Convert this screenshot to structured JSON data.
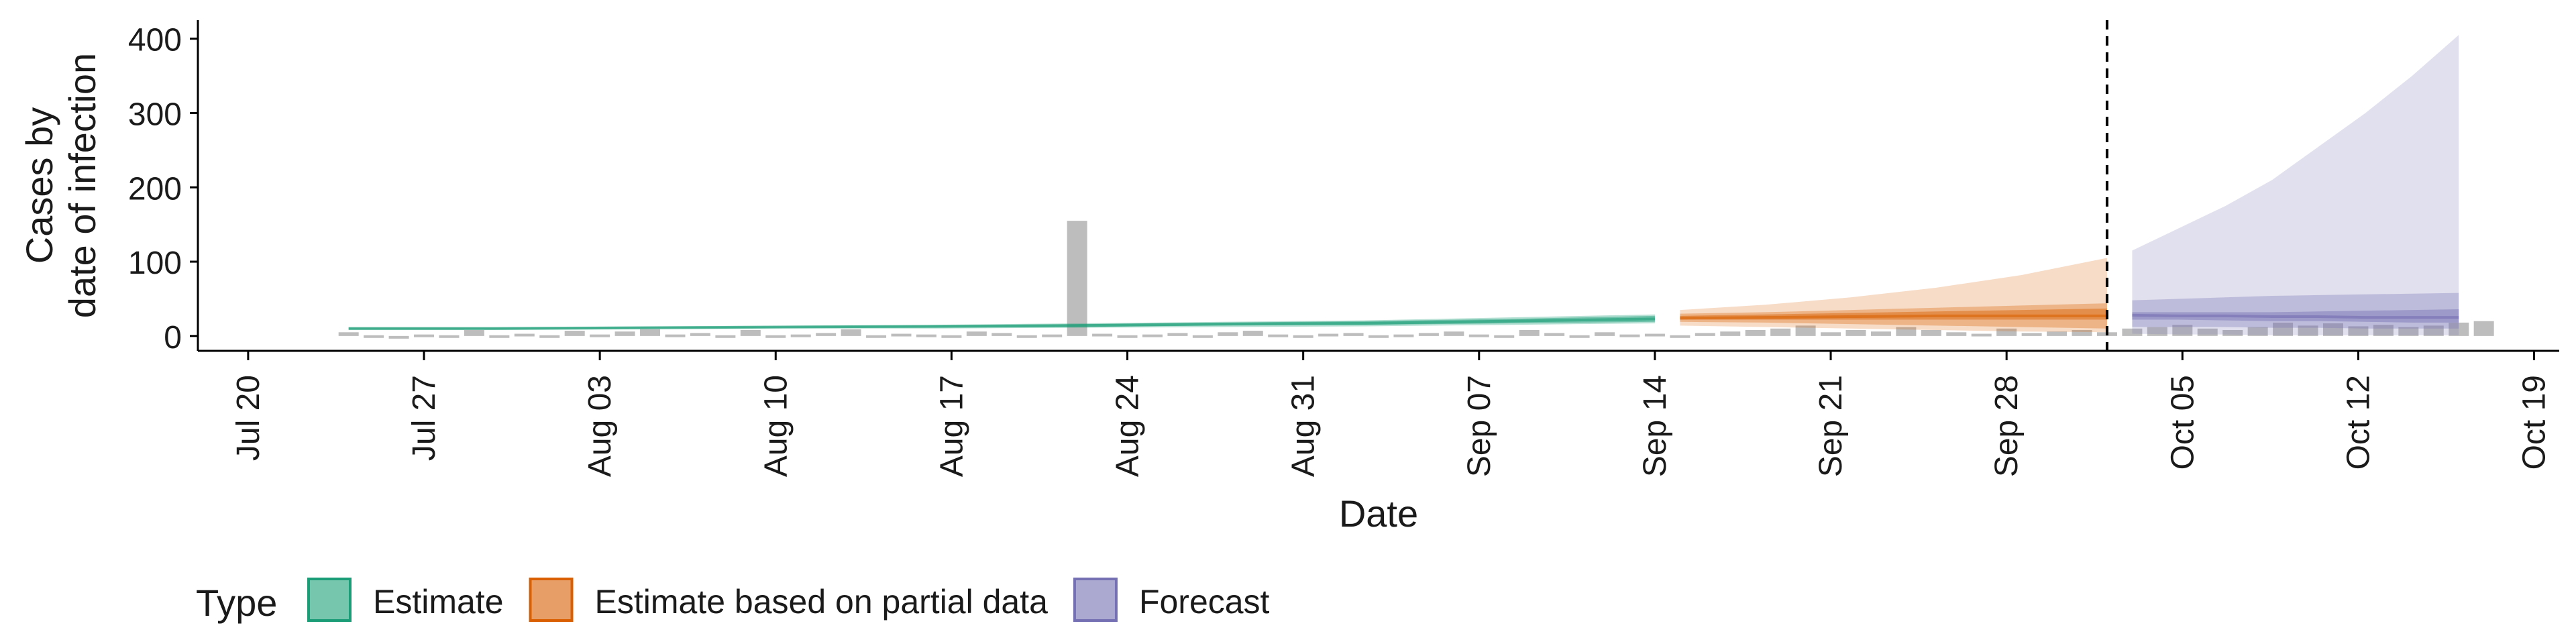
{
  "chart_data": {
    "type": "area",
    "title": "",
    "xlabel": "Date",
    "ylabel_lines": [
      "Cases by",
      "date of infection"
    ],
    "ylim": [
      -20,
      425
    ],
    "yticks": [
      0,
      100,
      200,
      300,
      400
    ],
    "xlim": [
      "2020-07-18",
      "2020-10-20"
    ],
    "xticks": [
      {
        "date": "2020-07-20",
        "label": "Jul 20"
      },
      {
        "date": "2020-07-27",
        "label": "Jul 27"
      },
      {
        "date": "2020-08-03",
        "label": "Aug 03"
      },
      {
        "date": "2020-08-10",
        "label": "Aug 10"
      },
      {
        "date": "2020-08-17",
        "label": "Aug 17"
      },
      {
        "date": "2020-08-24",
        "label": "Aug 24"
      },
      {
        "date": "2020-08-31",
        "label": "Aug 31"
      },
      {
        "date": "2020-09-07",
        "label": "Sep 07"
      },
      {
        "date": "2020-09-14",
        "label": "Sep 14"
      },
      {
        "date": "2020-09-21",
        "label": "Sep 21"
      },
      {
        "date": "2020-09-28",
        "label": "Sep 28"
      },
      {
        "date": "2020-10-05",
        "label": "Oct 05"
      },
      {
        "date": "2020-10-12",
        "label": "Oct 12"
      },
      {
        "date": "2020-10-19",
        "label": "Oct 19"
      }
    ],
    "vline_date": "2020-10-02",
    "grid": false,
    "legend": {
      "position": "bottom-left",
      "title": "Type",
      "entries": [
        {
          "label": "Estimate",
          "fill": "#1b9e77"
        },
        {
          "label": "Estimate based on partial data",
          "fill": "#d95f02"
        },
        {
          "label": "Forecast",
          "fill": "#7570b3"
        }
      ]
    },
    "observed_cases": {
      "color": "#bdbdbd",
      "start_date": "2020-07-24",
      "values": [
        5,
        1,
        0,
        2,
        1,
        8,
        1,
        3,
        1,
        7,
        2,
        6,
        9,
        2,
        4,
        1,
        8,
        1,
        2,
        4,
        9,
        1,
        3,
        2,
        1,
        6,
        4,
        1,
        2,
        155,
        3,
        1,
        2,
        4,
        1,
        5,
        7,
        2,
        1,
        3,
        4,
        1,
        2,
        4,
        6,
        2,
        1,
        8,
        4,
        1,
        5,
        2,
        3,
        1,
        4,
        6,
        8,
        10,
        14,
        5,
        8,
        6,
        12,
        8,
        5,
        3,
        10,
        4,
        6,
        8,
        5,
        10,
        12,
        15,
        10,
        8,
        12,
        18,
        14,
        17,
        13,
        15,
        12,
        14,
        18,
        20
      ]
    },
    "estimate": {
      "start_date": "2020-07-24",
      "end_date": "2020-09-14",
      "median": [
        10,
        10,
        11,
        12,
        13,
        14,
        16,
        17,
        20,
        23
      ],
      "lower_20": [
        9,
        9,
        10,
        11,
        11,
        12,
        14,
        15,
        17,
        19
      ],
      "upper_20": [
        11,
        11,
        12,
        13,
        14,
        16,
        18,
        20,
        23,
        27
      ],
      "lower_50": [
        8,
        8,
        9,
        10,
        10,
        11,
        12,
        13,
        15,
        17
      ],
      "upper_50": [
        12,
        12,
        13,
        14,
        15,
        17,
        19,
        21,
        25,
        29
      ]
    },
    "partial": {
      "start_date": "2020-09-15",
      "end_date": "2020-10-02",
      "median": [
        24,
        25,
        26,
        27,
        27,
        27
      ],
      "lower_20": [
        22,
        22,
        22,
        22,
        22,
        22
      ],
      "upper_20": [
        27,
        29,
        31,
        33,
        35,
        37
      ],
      "lower_50": [
        19,
        18,
        16,
        14,
        12,
        10
      ],
      "upper_50": [
        30,
        32,
        35,
        38,
        41,
        44
      ],
      "lower_90": [
        14,
        12,
        10,
        8,
        6,
        5
      ],
      "upper_90": [
        35,
        42,
        52,
        65,
        82,
        105
      ]
    },
    "forecast": {
      "start_date": "2020-10-03",
      "end_date": "2020-10-16",
      "median": [
        28,
        27,
        27,
        26,
        26,
        25,
        25,
        25
      ],
      "lower_20": [
        22,
        22,
        21,
        20,
        20,
        19,
        18,
        18
      ],
      "upper_20": [
        32,
        32,
        32,
        32,
        33,
        34,
        35,
        36
      ],
      "lower_50": [
        12,
        12,
        12,
        11,
        11,
        10,
        10,
        10
      ],
      "upper_50": [
        48,
        50,
        52,
        54,
        55,
        56,
        57,
        58
      ],
      "lower_90": [
        3,
        2,
        2,
        1,
        1,
        1,
        1,
        1
      ],
      "upper_90": [
        115,
        145,
        175,
        210,
        255,
        300,
        350,
        405
      ]
    }
  }
}
